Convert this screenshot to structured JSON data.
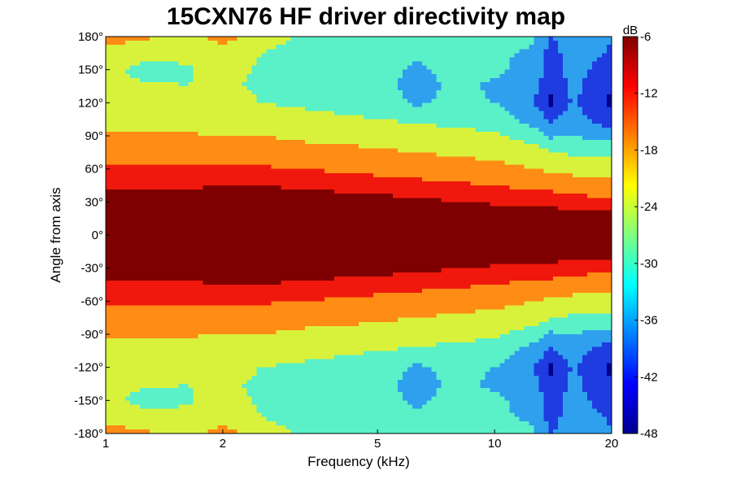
{
  "chart_data": {
    "type": "heatmap",
    "title": "15CXN76 HF driver directivity map",
    "xlabel": "Frequency (kHz)",
    "ylabel": "Angle from axis",
    "xscale": "log",
    "xlim": [
      1,
      20
    ],
    "ylim": [
      -180,
      180
    ],
    "xticks": [
      1,
      2,
      5,
      10,
      20
    ],
    "xtick_labels": [
      "1",
      "2",
      "5",
      "10",
      "20"
    ],
    "yticks": [
      180,
      150,
      120,
      90,
      60,
      30,
      0,
      -30,
      -60,
      -90,
      -120,
      -150,
      -180
    ],
    "ytick_labels": [
      "180°",
      "150°",
      "120°",
      "90°",
      "60°",
      "30°",
      "0°",
      "-30°",
      "-60°",
      "-90°",
      "-120°",
      "-150°",
      "-180°"
    ],
    "colorbar": {
      "label": "dB",
      "range": [
        -48,
        -6
      ],
      "ticks": [
        -6,
        -12,
        -18,
        -24,
        -30,
        -36,
        -42,
        -48
      ],
      "tick_labels": [
        "-6",
        "-12",
        "-18",
        "-24",
        "-30",
        "-36",
        "-42",
        "-48"
      ],
      "colormap": "jet"
    },
    "contour_bands": [
      {
        "min": -12,
        "color": "#7f0000"
      },
      {
        "min": -15,
        "color": "#f0180c"
      },
      {
        "min": -20,
        "color": "#ff8c14"
      },
      {
        "min": -27,
        "color": "#d8f23c"
      },
      {
        "min": -33,
        "color": "#5af0c8"
      },
      {
        "min": -39,
        "color": "#2ea0ee"
      },
      {
        "min": -45,
        "color": "#1e3ce0"
      },
      {
        "min": -999,
        "color": "#00008c"
      }
    ],
    "angles_deg": [
      0,
      15,
      30,
      45,
      60,
      75,
      90,
      105,
      120,
      135,
      150,
      165,
      180
    ],
    "symmetric": true,
    "frequencies_khz": [
      1,
      1.25,
      1.6,
      2,
      2.5,
      3.15,
      4,
      5,
      6.3,
      8,
      10,
      12.5,
      14,
      16,
      18,
      20
    ],
    "z_db": [
      [
        -6,
        -8,
        -10,
        -12.5,
        -14,
        -17,
        -19,
        -22,
        -23,
        -24,
        -24,
        -21,
        -18
      ],
      [
        -6,
        -8,
        -10,
        -12.5,
        -14,
        -17,
        -19,
        -22,
        -24,
        -26,
        -30,
        -24,
        -19
      ],
      [
        -6,
        -8,
        -10,
        -12.5,
        -14,
        -17,
        -19.5,
        -22,
        -25,
        -27,
        -28,
        -25,
        -22
      ],
      [
        -6,
        -8,
        -10,
        -12,
        -14,
        -17,
        -20,
        -23,
        -24,
        -26,
        -24,
        -22,
        -18
      ],
      [
        -6,
        -8,
        -10,
        -12,
        -14.5,
        -17,
        -20,
        -24,
        -27,
        -28,
        -28,
        -27,
        -22
      ],
      [
        -6,
        -8,
        -10,
        -12.5,
        -15,
        -18,
        -21,
        -25,
        -28,
        -29,
        -29,
        -30,
        -28
      ],
      [
        -6,
        -8,
        -10.5,
        -13,
        -15.5,
        -18,
        -22,
        -26,
        -29,
        -30,
        -30,
        -29,
        -28
      ],
      [
        -6,
        -8,
        -11,
        -13.5,
        -16,
        -19,
        -23,
        -27,
        -30,
        -31,
        -31,
        -30,
        -29
      ],
      [
        -6,
        -8,
        -11,
        -14,
        -16.5,
        -20,
        -24,
        -28,
        -34,
        -35,
        -34,
        -32,
        -30
      ],
      [
        -6,
        -9,
        -12,
        -14.5,
        -17,
        -21,
        -25,
        -29,
        -31,
        -32,
        -31,
        -30,
        -29
      ],
      [
        -6,
        -9,
        -12.5,
        -15,
        -18,
        -22,
        -26,
        -30,
        -33,
        -34,
        -32,
        -32,
        -30
      ],
      [
        -6,
        -9.5,
        -13,
        -16,
        -20,
        -24,
        -30,
        -35,
        -38,
        -37,
        -35,
        -34,
        -32
      ],
      [
        -6,
        -10,
        -13,
        -16,
        -21,
        -27,
        -34,
        -40,
        -46,
        -44,
        -42,
        -42,
        -40
      ],
      [
        -6,
        -10,
        -13.5,
        -17,
        -22,
        -28,
        -33,
        -36,
        -38,
        -37,
        -36,
        -35,
        -33
      ],
      [
        -6,
        -10,
        -14,
        -17,
        -22,
        -28,
        -35,
        -40,
        -43,
        -42,
        -40,
        -38,
        -37
      ],
      [
        -6,
        -10,
        -14,
        -17,
        -22,
        -28,
        -36,
        -42,
        -46,
        -45,
        -43,
        -40,
        -38
      ]
    ]
  }
}
